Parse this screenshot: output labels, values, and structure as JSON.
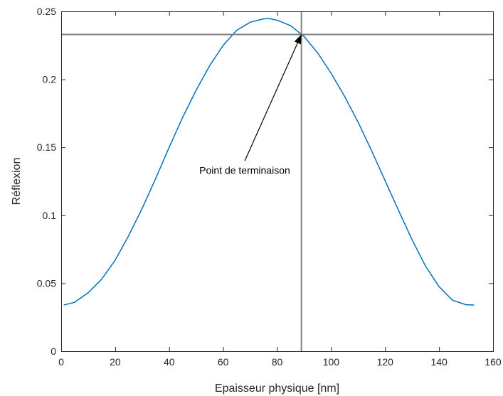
{
  "chart_data": {
    "type": "line",
    "title": "",
    "xlabel": "Epaisseur physique [nm]",
    "ylabel": "Réflexion",
    "xlim": [
      0,
      160
    ],
    "ylim": [
      0,
      0.25
    ],
    "xticks": [
      0,
      20,
      40,
      60,
      80,
      100,
      120,
      140,
      160
    ],
    "yticks": [
      0,
      0.05,
      0.1,
      0.15,
      0.2,
      0.25
    ],
    "xtick_labels": [
      "0",
      "20",
      "40",
      "60",
      "80",
      "100",
      "120",
      "140",
      "160"
    ],
    "ytick_labels": [
      "0",
      "0.05",
      "0.1",
      "0.15",
      "0.2",
      "0.25"
    ],
    "grid": false,
    "box": true,
    "series": [
      {
        "color": "#0072bd",
        "x": [
          1,
          5,
          10,
          15,
          20,
          25,
          30,
          35,
          40,
          45,
          50,
          55,
          60,
          65,
          70,
          75,
          77,
          80,
          85,
          90,
          95,
          100,
          105,
          110,
          115,
          120,
          125,
          130,
          135,
          140,
          145,
          150,
          153
        ],
        "y": [
          0.034,
          0.036,
          0.043,
          0.053,
          0.067,
          0.085,
          0.105,
          0.127,
          0.15,
          0.172,
          0.192,
          0.21,
          0.225,
          0.236,
          0.242,
          0.2445,
          0.2447,
          0.2435,
          0.2395,
          0.2315,
          0.2195,
          0.2045,
          0.1875,
          0.1685,
          0.1475,
          0.1255,
          0.1035,
          0.082,
          0.0625,
          0.0475,
          0.0375,
          0.0342,
          0.034
        ]
      }
    ],
    "reference_lines": {
      "color": "#808080",
      "horizontal_y": 0.233,
      "vertical_x": 89
    },
    "annotation": {
      "text": "Point de terminaison",
      "arrow_tip": [
        89,
        0.233
      ],
      "label_anchor": [
        68,
        0.14
      ]
    }
  }
}
